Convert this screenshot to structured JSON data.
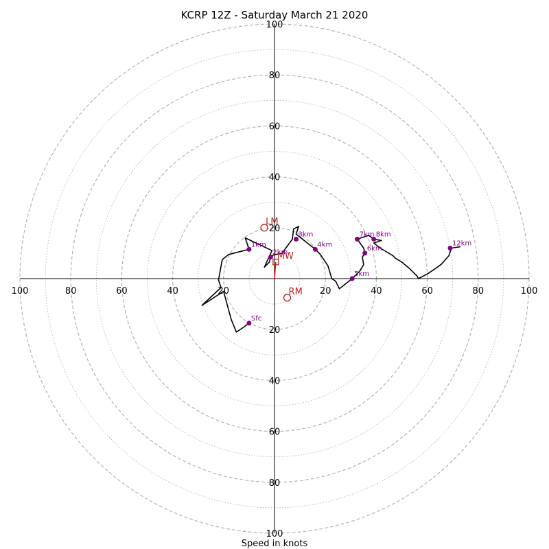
{
  "chart_data": {
    "type": "hodograph",
    "title": "KCRP 12Z - Saturday March 21 2020",
    "xlabel": "Speed in knots",
    "units": "knots",
    "range": 100,
    "ring_step_major": 20,
    "ring_step_minor": 10,
    "x_ticks": [
      {
        "value": -100,
        "label": "100"
      },
      {
        "value": -80,
        "label": "80"
      },
      {
        "value": -60,
        "label": "60"
      },
      {
        "value": -40,
        "label": "40"
      },
      {
        "value": -20,
        "label": "20"
      },
      {
        "value": 20,
        "label": "20"
      },
      {
        "value": 40,
        "label": "40"
      },
      {
        "value": 60,
        "label": "60"
      },
      {
        "value": 80,
        "label": "80"
      },
      {
        "value": 100,
        "label": "100"
      }
    ],
    "y_ticks": [
      {
        "value": 100,
        "label": "100"
      },
      {
        "value": 80,
        "label": "80"
      },
      {
        "value": 60,
        "label": "60"
      },
      {
        "value": 40,
        "label": "40"
      },
      {
        "value": 20,
        "label": "20"
      },
      {
        "value": -20,
        "label": "20"
      },
      {
        "value": -40,
        "label": "40"
      },
      {
        "value": -60,
        "label": "60"
      },
      {
        "value": -80,
        "label": "80"
      },
      {
        "value": -100,
        "label": "100"
      }
    ],
    "trace": [
      [
        -10,
        -17.5
      ],
      [
        -12,
        -19
      ],
      [
        -15,
        -21
      ],
      [
        -17,
        -16
      ],
      [
        -20,
        -5
      ],
      [
        -28.5,
        -10.5
      ],
      [
        -21,
        -3.5
      ],
      [
        -22,
        -0.5
      ],
      [
        -20.5,
        7.5
      ],
      [
        -18,
        9.5
      ],
      [
        -10,
        11.5
      ],
      [
        -11.5,
        16
      ],
      [
        -1,
        11
      ],
      [
        -4,
        4.5
      ],
      [
        -2,
        6.5
      ],
      [
        -1.5,
        9
      ],
      [
        3,
        10
      ],
      [
        7,
        15.5
      ],
      [
        7.5,
        19.5
      ],
      [
        9.5,
        20.5
      ],
      [
        8.5,
        17.5
      ],
      [
        16,
        11.5
      ],
      [
        18,
        9.5
      ],
      [
        21,
        5
      ],
      [
        22.5,
        0
      ],
      [
        24,
        -1
      ],
      [
        25.5,
        -4
      ],
      [
        28,
        -2
      ],
      [
        30.5,
        0
      ],
      [
        33.5,
        3
      ],
      [
        35,
        5.5
      ],
      [
        34.5,
        8.5
      ],
      [
        35.5,
        10
      ],
      [
        35,
        12
      ],
      [
        32.5,
        15.5
      ],
      [
        37,
        17
      ],
      [
        39,
        15.5
      ],
      [
        42,
        15
      ],
      [
        39,
        14
      ],
      [
        41.5,
        12
      ],
      [
        44,
        10.5
      ],
      [
        46.5,
        9
      ],
      [
        47.5,
        8
      ],
      [
        50,
        6.5
      ],
      [
        53,
        4
      ],
      [
        56,
        1
      ],
      [
        56.5,
        0
      ],
      [
        60,
        1.8
      ],
      [
        63,
        3.8
      ],
      [
        65.5,
        5.6
      ],
      [
        68.5,
        9
      ],
      [
        69.5,
        12
      ],
      [
        73,
        12.5
      ]
    ],
    "height_markers": [
      {
        "label": "Sfc",
        "u": -10,
        "v": -17.5
      },
      {
        "label": "1km",
        "u": -10,
        "v": 11.5
      },
      {
        "label": "2km",
        "u": -1.5,
        "v": 8.5
      },
      {
        "label": "3km",
        "u": 8.5,
        "v": 15.5
      },
      {
        "label": "4km",
        "u": 16,
        "v": 11.5
      },
      {
        "label": "5km",
        "u": 30.5,
        "v": 0
      },
      {
        "label": "6km",
        "u": 35.5,
        "v": 10
      },
      {
        "label": "7km",
        "u": 32.5,
        "v": 15.5
      },
      {
        "label": "8km",
        "u": 39,
        "v": 15.5
      },
      {
        "label": "12km",
        "u": 69,
        "v": 12
      }
    ],
    "storm_motions": [
      {
        "label": "LM",
        "u": -4,
        "v": 20,
        "marker": "circle"
      },
      {
        "label": "RM",
        "u": 5,
        "v": -7.5,
        "marker": "circle"
      },
      {
        "label": "MW",
        "u": 0.5,
        "v": 6.5,
        "marker": "square"
      }
    ],
    "storm_vector": {
      "from": [
        0,
        0
      ],
      "to": [
        0.5,
        6.5
      ]
    },
    "colors": {
      "trace": "#000000",
      "markers": "#800080",
      "storm_motion": "#b22222",
      "vector": "#ff0000",
      "rings": "#b3b3b3",
      "axes": "#000000"
    }
  }
}
